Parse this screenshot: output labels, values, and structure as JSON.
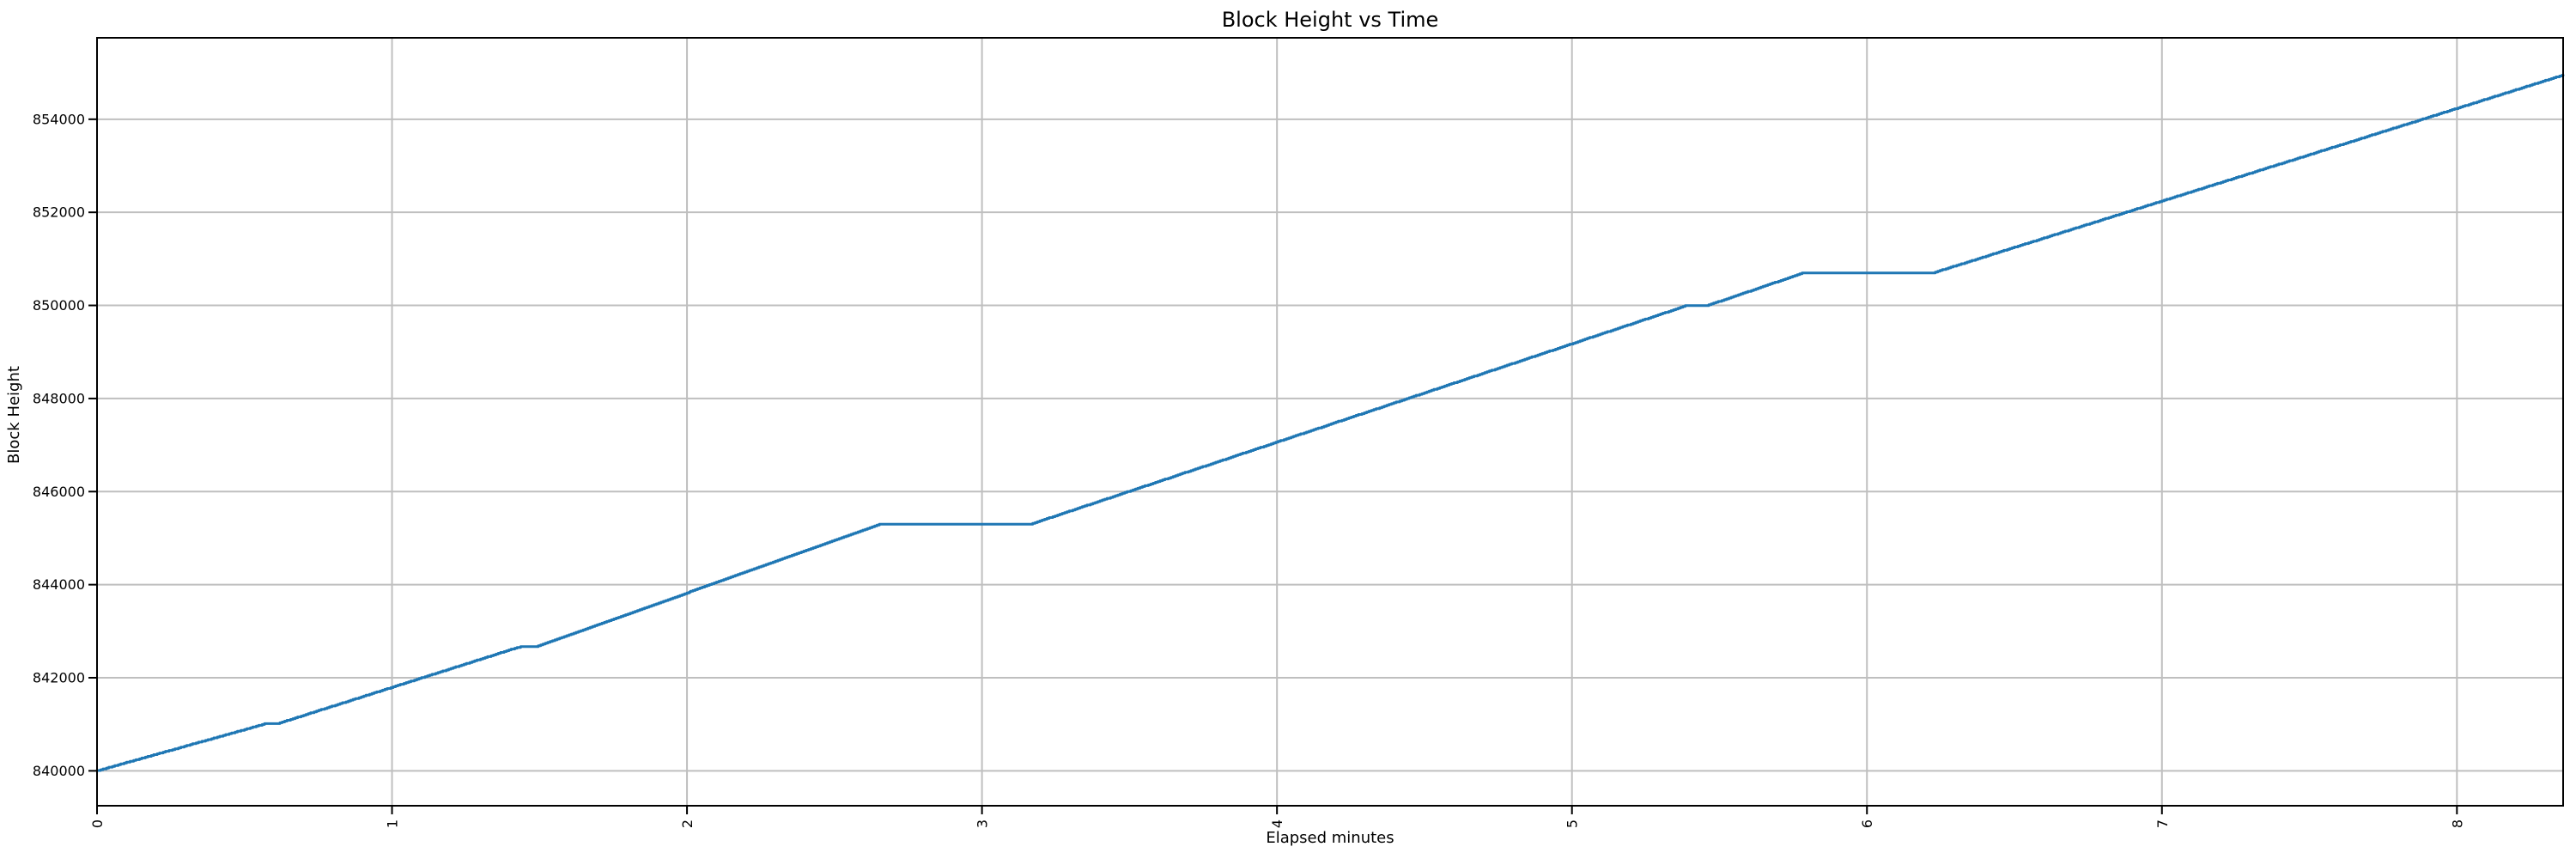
{
  "chart_data": {
    "type": "line",
    "title": "Block Height vs Time",
    "xlabel": "Elapsed minutes",
    "ylabel": "Block Height",
    "xlim": [
      0,
      8.36
    ],
    "ylim": [
      839250,
      855750
    ],
    "xticks": [
      0,
      1,
      2,
      3,
      4,
      5,
      6,
      7,
      8
    ],
    "yticks": [
      840000,
      842000,
      844000,
      846000,
      848000,
      850000,
      852000,
      854000
    ],
    "grid": true,
    "legend": false,
    "series": [
      {
        "name": "Block Height",
        "color": "#1f77b4",
        "line_width": 3,
        "style": "stepped",
        "step_size": 18,
        "points": [
          [
            0.0,
            840000
          ],
          [
            0.57,
            841010
          ],
          [
            0.61,
            841010
          ],
          [
            1.43,
            842660
          ],
          [
            1.49,
            842670
          ],
          [
            2.65,
            845290
          ],
          [
            3.16,
            845290
          ],
          [
            5.39,
            850000
          ],
          [
            5.46,
            850000
          ],
          [
            5.78,
            850690
          ],
          [
            6.22,
            850690
          ],
          [
            8.36,
            854950
          ]
        ]
      }
    ],
    "colors": {
      "background": "#ffffff",
      "grid": "#bfbfbf",
      "spine": "#000000",
      "tick": "#000000",
      "text": "#000000"
    }
  }
}
